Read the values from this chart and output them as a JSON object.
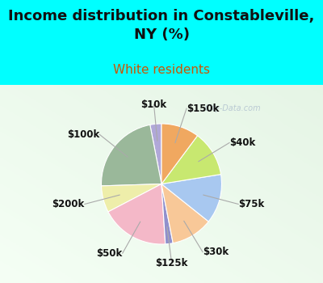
{
  "title": "Income distribution in Constableville,\nNY (%)",
  "subtitle": "White residents",
  "title_fontsize": 13,
  "subtitle_fontsize": 11,
  "title_color": "#111111",
  "subtitle_color": "#cc5500",
  "bg_cyan": "#00ffff",
  "bg_chart_topleft": "#e0f5ee",
  "bg_chart_bottomright": "#d0eee0",
  "labels": [
    "$10k",
    "$100k",
    "$200k",
    "$50k",
    "$125k",
    "$30k",
    "$75k",
    "$40k",
    "$150k"
  ],
  "values": [
    3,
    22,
    7,
    18,
    2,
    11,
    13,
    12,
    10
  ],
  "colors": [
    "#b0a8d8",
    "#9ab89a",
    "#eeeeaa",
    "#f4b8c8",
    "#9090cc",
    "#f8c898",
    "#a8c8f0",
    "#c8e870",
    "#f0a860"
  ],
  "startangle": 90,
  "label_fontsize": 8.5,
  "watermark": "City-Data.com"
}
